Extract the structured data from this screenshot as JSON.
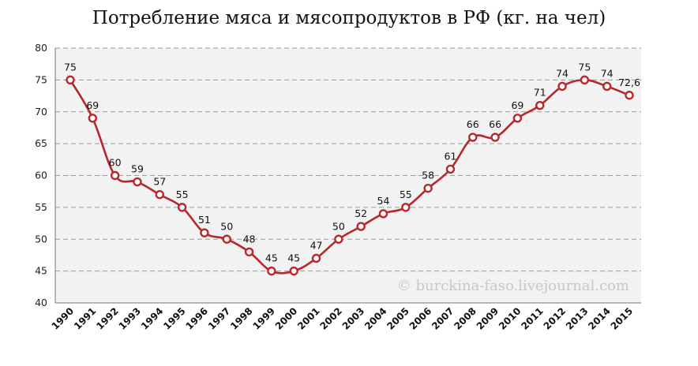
{
  "chart_data": {
    "type": "line",
    "title": "Потребление мяса и мясопродуктов в РФ (кг. на чел)",
    "categories": [
      "1990",
      "1991",
      "1992",
      "1993",
      "1994",
      "1995",
      "1996",
      "1997",
      "1998",
      "1999",
      "2000",
      "2001",
      "2002",
      "2003",
      "2004",
      "2005",
      "2006",
      "2007",
      "2008",
      "2009",
      "2010",
      "2011",
      "2012",
      "2013",
      "2014",
      "2015"
    ],
    "values": [
      75,
      69,
      60,
      59,
      57,
      55,
      51,
      50,
      48,
      45,
      45,
      47,
      50,
      52,
      54,
      55,
      58,
      61,
      66,
      66,
      69,
      71,
      74,
      75,
      74,
      72.6
    ],
    "data_labels": [
      "75",
      "69",
      "60",
      "59",
      "57",
      "55",
      "51",
      "50",
      "48",
      "45",
      "45",
      "47",
      "50",
      "52",
      "54",
      "55",
      "58",
      "61",
      "66",
      "66",
      "69",
      "71",
      "74",
      "75",
      "74",
      "72,6"
    ],
    "ylim": [
      40,
      80
    ],
    "yticks": [
      40,
      45,
      50,
      55,
      60,
      65,
      70,
      75,
      80
    ],
    "grid": true,
    "line_color": "#b5282e",
    "plot_background": "#f2f2f2",
    "watermark": "© burckina-faso.livejournal.com"
  }
}
